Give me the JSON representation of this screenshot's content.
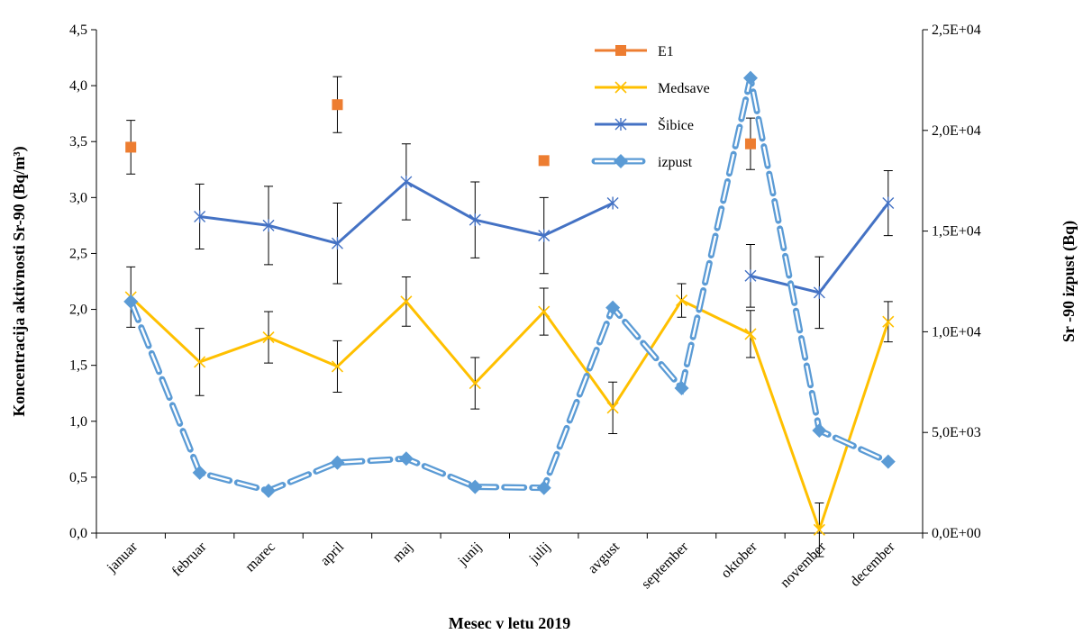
{
  "chart_data": {
    "type": "line",
    "title": "",
    "xlabel": "Mesec v letu 2019",
    "ylabel": "Koncentracija aktivnosti Sr-90 (Bq/m³)",
    "y2label": "Sr -90 izpust (Bq)",
    "categories": [
      "januar",
      "februar",
      "marec",
      "april",
      "maj",
      "junij",
      "julij",
      "avgust",
      "september",
      "oktober",
      "november",
      "december"
    ],
    "ylim": [
      0,
      4.5
    ],
    "yticks": [
      "0,0",
      "0,5",
      "1,0",
      "1,5",
      "2,0",
      "2,5",
      "3,0",
      "3,5",
      "4,0",
      "4,5"
    ],
    "y2lim": [
      0,
      25000
    ],
    "y2ticks": [
      "0,0E+00",
      "5,0E+03",
      "1,0E+04",
      "1,5E+04",
      "2,0E+04",
      "2,5E+04"
    ],
    "grid": false,
    "legend_position": "top-right",
    "series": [
      {
        "name": "E1",
        "axis": "left",
        "marker": "square",
        "color": "#ED7D31",
        "line": false,
        "values": [
          3.45,
          null,
          null,
          3.83,
          null,
          null,
          3.33,
          null,
          null,
          3.48,
          null,
          null
        ],
        "errors": [
          0.24,
          null,
          null,
          0.25,
          null,
          null,
          null,
          null,
          null,
          0.23,
          null,
          null
        ]
      },
      {
        "name": "Medsave",
        "axis": "left",
        "marker": "x",
        "color": "#FFC000",
        "line": true,
        "values": [
          2.11,
          1.53,
          1.75,
          1.49,
          2.07,
          1.34,
          1.98,
          1.12,
          2.08,
          1.78,
          0.03,
          1.89
        ],
        "errors": [
          0.27,
          0.3,
          0.23,
          0.23,
          0.22,
          0.23,
          0.21,
          0.23,
          0.15,
          0.21,
          0.24,
          0.18
        ]
      },
      {
        "name": "Šibice",
        "axis": "left",
        "marker": "star",
        "color": "#4472C4",
        "line": true,
        "segments": [
          [
            1,
            7
          ],
          [
            9,
            11
          ]
        ],
        "values": [
          null,
          2.83,
          2.75,
          2.59,
          3.14,
          2.8,
          2.66,
          2.95,
          null,
          2.3,
          2.15,
          2.95
        ],
        "errors": [
          null,
          0.29,
          0.35,
          0.36,
          0.34,
          0.34,
          0.34,
          null,
          null,
          0.28,
          0.32,
          0.29
        ]
      },
      {
        "name": "izpust",
        "axis": "right",
        "marker": "diamond",
        "color": "#5B9BD5",
        "line": "dashed-double",
        "values": [
          11500,
          3000,
          2100,
          3500,
          3700,
          2300,
          2250,
          11200,
          7200,
          22600,
          5100,
          3550
        ]
      }
    ]
  }
}
